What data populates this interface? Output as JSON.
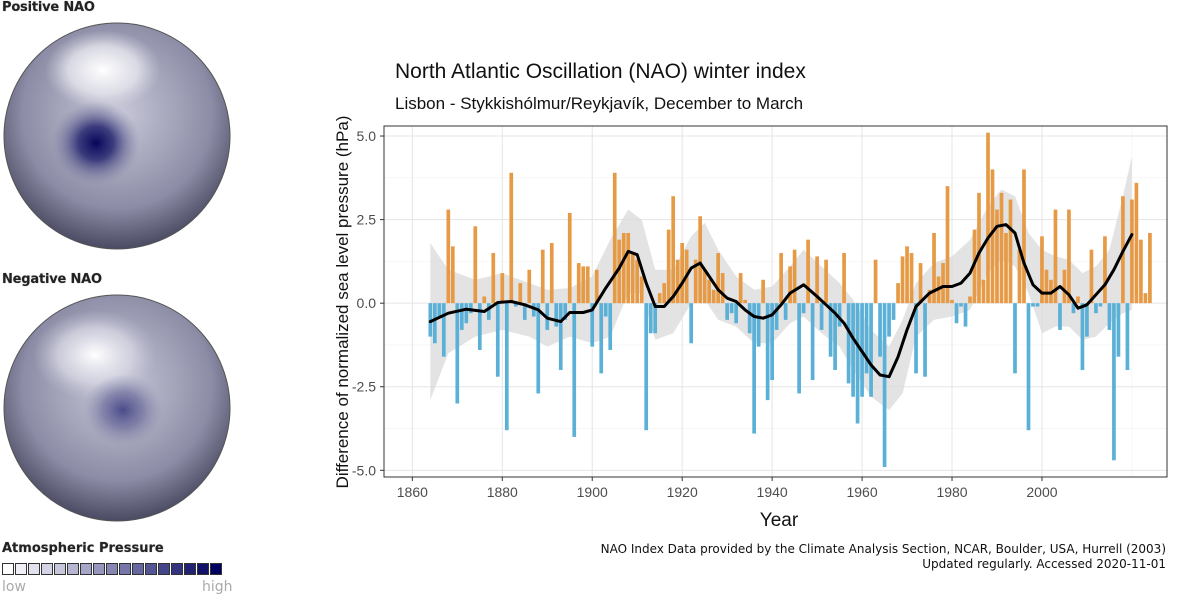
{
  "maps": {
    "positive_label": "Positive NAO",
    "negative_label": "Negative NAO",
    "legend_title": "Atmospheric Pressure",
    "legend_low": "low",
    "legend_high": "high",
    "legend_colors": [
      "#ffffff",
      "#f0f0f6",
      "#e2e2ee",
      "#d4d4e6",
      "#c6c6dd",
      "#b6b6d3",
      "#a6a6c9",
      "#9696bf",
      "#8686b5",
      "#7676ab",
      "#6666a1",
      "#555596",
      "#44448b",
      "#333380",
      "#222275",
      "#11116a",
      "#000060"
    ]
  },
  "credits": {
    "line1": "NAO Index Data provided by the Climate Analysis Section, NCAR, Boulder, USA, Hurrell (2003)",
    "line2": "Updated regularly. Accessed 2020-11-01"
  },
  "chart_data": {
    "type": "bar",
    "title": "North Atlantic Oscillation (NAO) winter index",
    "subtitle": "Lisbon - Stykkishólmur/Reykjavík, December to March",
    "xlabel": "Year",
    "ylabel": "Difference of normalized sea level pressure (hPa)",
    "xlim": [
      1860,
      2020
    ],
    "ylim": [
      -5.2,
      5.3
    ],
    "xticks": [
      1860,
      1880,
      1900,
      1920,
      1940,
      1960,
      1980,
      2000
    ],
    "yticks": [
      -5.0,
      -2.5,
      0.0,
      2.5,
      5.0
    ],
    "ytick_labels": [
      "-5.0",
      "-2.5",
      "0.0",
      "2.5",
      "5.0"
    ],
    "grid": true,
    "colors": {
      "positive": "#E69A45",
      "negative": "#5AB0D6",
      "smooth": "#000000",
      "band": "#d9d9d9"
    },
    "x_start": 1864,
    "values": [
      -1.0,
      -1.2,
      -0.4,
      -1.6,
      2.8,
      1.7,
      -3.0,
      -0.8,
      -0.6,
      -0.3,
      2.3,
      -1.4,
      0.2,
      -0.5,
      1.5,
      -2.2,
      0.9,
      -3.8,
      3.9,
      -0.1,
      0.6,
      -0.5,
      1.0,
      -0.4,
      -2.7,
      1.6,
      -0.8,
      1.8,
      -0.7,
      -2.0,
      -0.5,
      2.7,
      -4.0,
      1.2,
      1.1,
      1.1,
      -1.3,
      1.0,
      -2.1,
      -0.4,
      -1.4,
      3.9,
      1.9,
      2.1,
      2.1,
      1.5,
      1.3,
      0.8,
      -3.8,
      -0.9,
      -0.9,
      0.3,
      0.6,
      2.2,
      3.2,
      1.3,
      1.8,
      1.6,
      -1.2,
      1.3,
      2.6,
      1.0,
      0.7,
      0.4,
      1.5,
      0.9,
      -0.5,
      -0.3,
      -0.6,
      0.9,
      0.1,
      -0.9,
      -3.9,
      -1.3,
      0.7,
      -2.9,
      -2.3,
      -0.8,
      1.5,
      -0.5,
      1.1,
      1.6,
      -2.7,
      -0.3,
      1.9,
      -2.3,
      1.4,
      -0.8,
      1.3,
      -1.6,
      -2.0,
      -0.7,
      1.5,
      -2.4,
      -2.8,
      -3.6,
      -2.8,
      -2.1,
      -2.8,
      1.3,
      -1.6,
      -4.9,
      -1.0,
      -0.5,
      0.6,
      1.4,
      1.7,
      1.5,
      -2.1,
      1.2,
      -2.2,
      0.4,
      2.1,
      0.8,
      1.2,
      3.5,
      0.1,
      -0.6,
      -0.1,
      -0.7,
      0.2,
      2.2,
      3.3,
      0.7,
      5.1,
      4.0,
      2.8,
      3.3,
      2.1,
      3.1,
      -2.1,
      1.6,
      4.0,
      -3.8,
      -0.1,
      -0.1,
      2.0,
      1.0,
      0.7,
      2.8,
      -0.8,
      1.0,
      2.8,
      -0.3,
      0.2,
      -2.0,
      -1.0,
      1.6,
      -0.3,
      -0.1,
      2.0,
      -0.8,
      -4.7,
      -1.6,
      3.2,
      -2.0,
      3.1,
      3.6,
      1.9,
      0.3,
      2.1
    ],
    "smoothed": [
      [
        1864,
        -0.55
      ],
      [
        1868,
        -0.3
      ],
      [
        1872,
        -0.18
      ],
      [
        1876,
        -0.25
      ],
      [
        1879,
        0.02
      ],
      [
        1882,
        0.05
      ],
      [
        1885,
        -0.05
      ],
      [
        1888,
        -0.2
      ],
      [
        1890,
        -0.45
      ],
      [
        1893,
        -0.55
      ],
      [
        1895,
        -0.28
      ],
      [
        1898,
        -0.28
      ],
      [
        1900,
        -0.2
      ],
      [
        1903,
        0.45
      ],
      [
        1906,
        1.05
      ],
      [
        1908,
        1.55
      ],
      [
        1910,
        1.45
      ],
      [
        1912,
        0.6
      ],
      [
        1914,
        -0.1
      ],
      [
        1916,
        -0.1
      ],
      [
        1918,
        0.2
      ],
      [
        1920,
        0.6
      ],
      [
        1922,
        1.05
      ],
      [
        1924,
        1.2
      ],
      [
        1926,
        0.8
      ],
      [
        1928,
        0.4
      ],
      [
        1930,
        0.15
      ],
      [
        1932,
        0.05
      ],
      [
        1934,
        -0.2
      ],
      [
        1936,
        -0.4
      ],
      [
        1938,
        -0.45
      ],
      [
        1940,
        -0.35
      ],
      [
        1942,
        -0.05
      ],
      [
        1944,
        0.3
      ],
      [
        1947,
        0.55
      ],
      [
        1950,
        0.2
      ],
      [
        1952,
        -0.05
      ],
      [
        1954,
        -0.3
      ],
      [
        1956,
        -0.6
      ],
      [
        1958,
        -1.05
      ],
      [
        1960,
        -1.45
      ],
      [
        1962,
        -1.85
      ],
      [
        1964,
        -2.15
      ],
      [
        1966,
        -2.2
      ],
      [
        1968,
        -1.6
      ],
      [
        1970,
        -0.8
      ],
      [
        1972,
        -0.1
      ],
      [
        1975,
        0.3
      ],
      [
        1978,
        0.5
      ],
      [
        1980,
        0.5
      ],
      [
        1982,
        0.6
      ],
      [
        1984,
        0.9
      ],
      [
        1986,
        1.5
      ],
      [
        1988,
        1.95
      ],
      [
        1990,
        2.3
      ],
      [
        1992,
        2.35
      ],
      [
        1994,
        2.1
      ],
      [
        1996,
        1.2
      ],
      [
        1998,
        0.55
      ],
      [
        2000,
        0.3
      ],
      [
        2002,
        0.3
      ],
      [
        2004,
        0.5
      ],
      [
        2006,
        0.25
      ],
      [
        2008,
        -0.15
      ],
      [
        2010,
        -0.05
      ],
      [
        2012,
        0.25
      ],
      [
        2014,
        0.55
      ],
      [
        2016,
        1.0
      ],
      [
        2018,
        1.55
      ],
      [
        2020,
        2.05
      ]
    ],
    "band_upper": [
      [
        1864,
        1.8
      ],
      [
        1868,
        1.0
      ],
      [
        1874,
        0.7
      ],
      [
        1880,
        0.9
      ],
      [
        1886,
        0.6
      ],
      [
        1890,
        0.4
      ],
      [
        1895,
        0.45
      ],
      [
        1900,
        0.8
      ],
      [
        1904,
        1.9
      ],
      [
        1908,
        2.8
      ],
      [
        1911,
        2.5
      ],
      [
        1914,
        1.0
      ],
      [
        1918,
        1.0
      ],
      [
        1922,
        2.0
      ],
      [
        1925,
        2.4
      ],
      [
        1928,
        1.6
      ],
      [
        1932,
        0.8
      ],
      [
        1936,
        0.4
      ],
      [
        1940,
        0.5
      ],
      [
        1944,
        1.1
      ],
      [
        1947,
        1.6
      ],
      [
        1951,
        1.1
      ],
      [
        1955,
        0.6
      ],
      [
        1958,
        0.1
      ],
      [
        1962,
        -0.8
      ],
      [
        1966,
        -1.3
      ],
      [
        1969,
        -0.5
      ],
      [
        1972,
        0.6
      ],
      [
        1976,
        1.2
      ],
      [
        1980,
        1.4
      ],
      [
        1984,
        1.9
      ],
      [
        1988,
        2.9
      ],
      [
        1991,
        3.4
      ],
      [
        1994,
        3.2
      ],
      [
        1997,
        2.1
      ],
      [
        2000,
        1.6
      ],
      [
        2003,
        1.4
      ],
      [
        2006,
        1.3
      ],
      [
        2009,
        0.9
      ],
      [
        2012,
        1.1
      ],
      [
        2015,
        1.6
      ],
      [
        2018,
        3.2
      ],
      [
        2020,
        4.4
      ]
    ],
    "band_lower": [
      [
        1864,
        -2.9
      ],
      [
        1868,
        -1.5
      ],
      [
        1874,
        -1.0
      ],
      [
        1880,
        -0.8
      ],
      [
        1886,
        -1.0
      ],
      [
        1890,
        -1.3
      ],
      [
        1895,
        -1.0
      ],
      [
        1900,
        -1.2
      ],
      [
        1904,
        -1.0
      ],
      [
        1908,
        0.3
      ],
      [
        1911,
        0.3
      ],
      [
        1914,
        -1.1
      ],
      [
        1918,
        -0.9
      ],
      [
        1922,
        0.0
      ],
      [
        1925,
        0.1
      ],
      [
        1928,
        -0.5
      ],
      [
        1932,
        -0.7
      ],
      [
        1936,
        -1.2
      ],
      [
        1940,
        -1.2
      ],
      [
        1944,
        -0.6
      ],
      [
        1947,
        -0.4
      ],
      [
        1951,
        -0.9
      ],
      [
        1955,
        -1.3
      ],
      [
        1958,
        -2.0
      ],
      [
        1962,
        -2.8
      ],
      [
        1966,
        -3.2
      ],
      [
        1969,
        -2.7
      ],
      [
        1972,
        -1.0
      ],
      [
        1976,
        -0.5
      ],
      [
        1980,
        -0.4
      ],
      [
        1984,
        -0.2
      ],
      [
        1988,
        0.9
      ],
      [
        1991,
        1.3
      ],
      [
        1994,
        1.1
      ],
      [
        1997,
        0.3
      ],
      [
        2000,
        -0.9
      ],
      [
        2003,
        -0.7
      ],
      [
        2006,
        -0.7
      ],
      [
        2009,
        -1.1
      ],
      [
        2012,
        -1.0
      ],
      [
        2015,
        -0.6
      ],
      [
        2018,
        -0.3
      ],
      [
        2020,
        -0.2
      ]
    ]
  }
}
